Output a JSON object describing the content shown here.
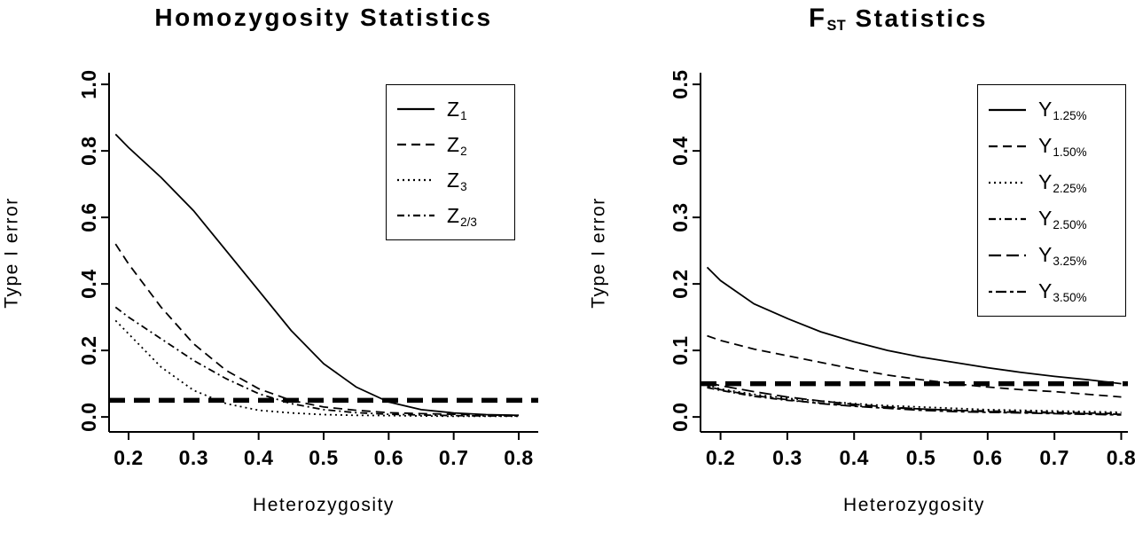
{
  "figure": {
    "background": "#ffffff",
    "foreground": "#000000"
  },
  "chart_data": [
    {
      "type": "line",
      "title": "Homozygosity Statistics",
      "title_parts": [
        {
          "text": "Homozygosity Statistics",
          "bold": true
        }
      ],
      "xlabel": "Heterozygosity",
      "ylabel": "Type I error",
      "xticks": [
        "0.2",
        "0.3",
        "0.4",
        "0.5",
        "0.6",
        "0.7",
        "0.8"
      ],
      "yticks": [
        "0.0",
        "0.2",
        "0.4",
        "0.6",
        "0.8",
        "1.0"
      ],
      "xrange": [
        0.17,
        0.83
      ],
      "yrange": [
        -0.045,
        1.035
      ],
      "xlim": [
        0.18,
        0.8
      ],
      "ylim": [
        0.0,
        1.0
      ],
      "legend_position": "top-right",
      "grid": false,
      "x": [
        0.18,
        0.2,
        0.25,
        0.3,
        0.35,
        0.4,
        0.45,
        0.5,
        0.55,
        0.6,
        0.65,
        0.7,
        0.75,
        0.8
      ],
      "threshold": {
        "name": "significance-level",
        "y": 0.05,
        "line_style": "thick-dashed"
      },
      "series": [
        {
          "name": "Z1",
          "label": {
            "main": "Z",
            "sub": "1"
          },
          "line_style": "solid",
          "dash": "",
          "values": [
            0.85,
            0.81,
            0.72,
            0.62,
            0.5,
            0.38,
            0.26,
            0.16,
            0.09,
            0.045,
            0.022,
            0.012,
            0.007,
            0.005
          ]
        },
        {
          "name": "Z2",
          "label": {
            "main": "Z",
            "sub": "2"
          },
          "line_style": "dashed",
          "dash": "10,6",
          "values": [
            0.52,
            0.46,
            0.33,
            0.22,
            0.14,
            0.085,
            0.05,
            0.03,
            0.02,
            0.013,
            0.01,
            0.008,
            0.006,
            0.005
          ]
        },
        {
          "name": "Z3",
          "label": {
            "main": "Z",
            "sub": "3"
          },
          "line_style": "dotted",
          "dash": "2,4",
          "values": [
            0.29,
            0.25,
            0.15,
            0.08,
            0.04,
            0.02,
            0.012,
            0.007,
            0.005,
            0.004,
            0.003,
            0.002,
            0.002,
            0.002
          ]
        },
        {
          "name": "Z2/3",
          "label": {
            "main": "Z",
            "sub": "2/3"
          },
          "line_style": "dotdash",
          "dash": "8,4,2,4",
          "values": [
            0.33,
            0.3,
            0.235,
            0.17,
            0.115,
            0.07,
            0.04,
            0.022,
            0.013,
            0.008,
            0.006,
            0.004,
            0.003,
            0.003
          ]
        }
      ]
    },
    {
      "type": "line",
      "title": "FST Statistics",
      "title_parts": [
        {
          "text": "F",
          "bold": true,
          "big": true
        },
        {
          "text": "ST",
          "bold": true,
          "sub": true
        },
        {
          "text": " Statistics",
          "bold": true
        }
      ],
      "xlabel": "Heterozygosity",
      "ylabel": "Type I error",
      "xticks": [
        "0.2",
        "0.3",
        "0.4",
        "0.5",
        "0.6",
        "0.7",
        "0.8"
      ],
      "yticks": [
        "0.0",
        "0.1",
        "0.2",
        "0.3",
        "0.4",
        "0.5"
      ],
      "xrange": [
        0.17,
        0.81
      ],
      "yrange": [
        -0.0225,
        0.5175
      ],
      "xlim": [
        0.18,
        0.8
      ],
      "ylim": [
        0.0,
        0.5
      ],
      "legend_position": "top-right",
      "grid": false,
      "x": [
        0.18,
        0.2,
        0.25,
        0.3,
        0.35,
        0.4,
        0.45,
        0.5,
        0.55,
        0.6,
        0.65,
        0.7,
        0.75,
        0.8
      ],
      "threshold": {
        "name": "significance-level",
        "y": 0.05,
        "line_style": "thick-dashed"
      },
      "series": [
        {
          "name": "Y1.25%",
          "label": {
            "main": "Y",
            "sub": "1.25%"
          },
          "line_style": "solid",
          "dash": "",
          "values": [
            0.225,
            0.205,
            0.17,
            0.148,
            0.128,
            0.113,
            0.1,
            0.09,
            0.082,
            0.074,
            0.067,
            0.061,
            0.056,
            0.05
          ]
        },
        {
          "name": "Y1.50%",
          "label": {
            "main": "Y",
            "sub": "1.50%"
          },
          "line_style": "dashed",
          "dash": "10,6",
          "values": [
            0.122,
            0.115,
            0.102,
            0.092,
            0.082,
            0.072,
            0.063,
            0.056,
            0.05,
            0.045,
            0.041,
            0.038,
            0.034,
            0.03
          ]
        },
        {
          "name": "Y2.25%",
          "label": {
            "main": "Y",
            "sub": "2.25%"
          },
          "line_style": "dotted",
          "dash": "2,4",
          "values": [
            0.048,
            0.042,
            0.034,
            0.028,
            0.024,
            0.02,
            0.017,
            0.015,
            0.013,
            0.011,
            0.01,
            0.009,
            0.008,
            0.007
          ]
        },
        {
          "name": "Y2.50%",
          "label": {
            "main": "Y",
            "sub": "2.50%"
          },
          "line_style": "dotdash",
          "dash": "8,4,2,4",
          "values": [
            0.044,
            0.04,
            0.031,
            0.025,
            0.021,
            0.017,
            0.014,
            0.012,
            0.01,
            0.009,
            0.008,
            0.007,
            0.006,
            0.005
          ]
        },
        {
          "name": "Y3.25%",
          "label": {
            "main": "Y",
            "sub": "3.25%"
          },
          "line_style": "longdash",
          "dash": "14,6",
          "values": [
            0.052,
            0.047,
            0.038,
            0.03,
            0.024,
            0.019,
            0.015,
            0.012,
            0.01,
            0.008,
            0.007,
            0.006,
            0.005,
            0.004
          ]
        },
        {
          "name": "Y3.50%",
          "label": {
            "main": "Y",
            "sub": "3.50%"
          },
          "line_style": "twodash",
          "dash": "4,4,12,4",
          "values": [
            0.046,
            0.041,
            0.032,
            0.026,
            0.02,
            0.016,
            0.013,
            0.01,
            0.008,
            0.007,
            0.006,
            0.005,
            0.004,
            0.003
          ]
        }
      ]
    }
  ]
}
